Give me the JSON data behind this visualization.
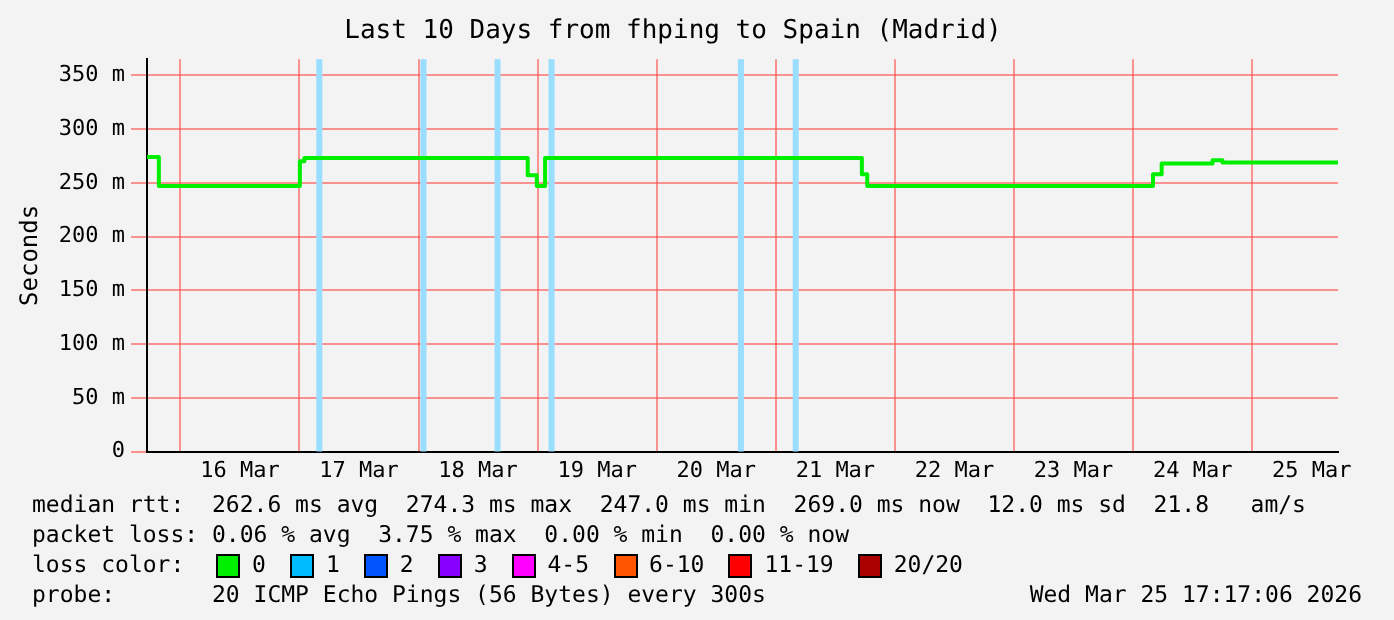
{
  "chart_data": {
    "type": "step",
    "title": "Last 10 Days from fhping to Spain (Madrid)",
    "ylabel": "Seconds",
    "legend_title": "loss color:",
    "legend": "bottom",
    "grid": true,
    "xlim": [
      "2026-03-15T17:17",
      "2026-03-25T17:17"
    ],
    "xticks": [
      {
        "value": "2026-03-16",
        "label": null
      },
      {
        "value": "2026-03-16T12:00",
        "label": "16 Mar"
      },
      {
        "value": "2026-03-17",
        "label": null
      },
      {
        "value": "2026-03-17T12:00",
        "label": "17 Mar"
      },
      {
        "value": "2026-03-18",
        "label": null
      },
      {
        "value": "2026-03-18T12:00",
        "label": "18 Mar"
      },
      {
        "value": "2026-03-19",
        "label": null
      },
      {
        "value": "2026-03-19T12:00",
        "label": "19 Mar"
      },
      {
        "value": "2026-03-20",
        "label": null
      },
      {
        "value": "2026-03-20T12:00",
        "label": "20 Mar"
      },
      {
        "value": "2026-03-21",
        "label": null
      },
      {
        "value": "2026-03-21T12:00",
        "label": "21 Mar"
      },
      {
        "value": "2026-03-22",
        "label": null
      },
      {
        "value": "2026-03-22T12:00",
        "label": "22 Mar"
      },
      {
        "value": "2026-03-23",
        "label": null
      },
      {
        "value": "2026-03-23T12:00",
        "label": "23 Mar"
      },
      {
        "value": "2026-03-24",
        "label": null
      },
      {
        "value": "2026-03-24T12:00",
        "label": "24 Mar"
      },
      {
        "value": "2026-03-25",
        "label": null
      },
      {
        "value": "2026-03-25T12:00",
        "label": "25 Mar"
      }
    ],
    "ylim": [
      0,
      365
    ],
    "yticks": [
      0,
      {
        "value": 50,
        "label": "50 m"
      },
      {
        "value": 100,
        "label": "100 m"
      },
      {
        "value": 150,
        "label": "150 m"
      },
      {
        "value": 200,
        "label": "200 m"
      },
      {
        "value": 250,
        "label": "250 m"
      },
      {
        "value": 300,
        "label": "300 m"
      },
      {
        "value": 350,
        "label": "350 m"
      }
    ],
    "ref_lines": [
      {
        "axis": "x",
        "value": "2026-03-17T04:00",
        "color": "#99ddff"
      },
      {
        "axis": "x",
        "value": "2026-03-18T01:00",
        "color": "#99ddff"
      },
      {
        "axis": "x",
        "value": "2026-03-18T15:55",
        "color": "#99ddff"
      },
      {
        "axis": "x",
        "value": "2026-03-19T02:48",
        "color": "#99ddff"
      },
      {
        "axis": "x",
        "value": "2026-03-20T16:58",
        "color": "#99ddff"
      },
      {
        "axis": "x",
        "value": "2026-03-21T04:00",
        "color": "#99ddff"
      }
    ],
    "series": [
      {
        "name": "0",
        "color": "#00ee00",
        "x": [
          "2026-03-15T17:17",
          "2026-03-15T19:40",
          "2026-03-17T00:05",
          "2026-03-17T01:00",
          "2026-03-18T22:00",
          "2026-03-18T23:50",
          "2026-03-19T01:30",
          "2026-03-21T17:20",
          "2026-03-21T18:25",
          "2026-03-24T04:00",
          "2026-03-24T05:45",
          "2026-03-24T16:00",
          "2026-03-24T18:00",
          "2026-03-25T17:17"
        ],
        "values": [
          274,
          247,
          270,
          273,
          257,
          247,
          273,
          258,
          247,
          258,
          268,
          271,
          269,
          269
        ]
      },
      {
        "name": "1",
        "color": "#00bbff"
      },
      {
        "name": "2",
        "color": "#0055ff"
      },
      {
        "name": "3",
        "color": "#8800ff"
      },
      {
        "name": "4-5",
        "color": "#ff00ff"
      },
      {
        "name": "6-10",
        "color": "#ff5500"
      },
      {
        "name": "11-19",
        "color": "#ff0000"
      },
      {
        "name": "20/20",
        "color": "#aa0000"
      }
    ],
    "annotations": [
      "median rtt:  262.6 ms avg  274.3 ms max  247.0 ms min  269.0 ms now  12.0 ms sd  21.8   am/s",
      "packet loss: 0.06 % avg  3.75 % max  0.00 % min  0.00 % now",
      "probe:       20 ICMP Echo Pings (56 Bytes) every 300s",
      "Wed Mar 25 17:17:06 2026"
    ]
  }
}
